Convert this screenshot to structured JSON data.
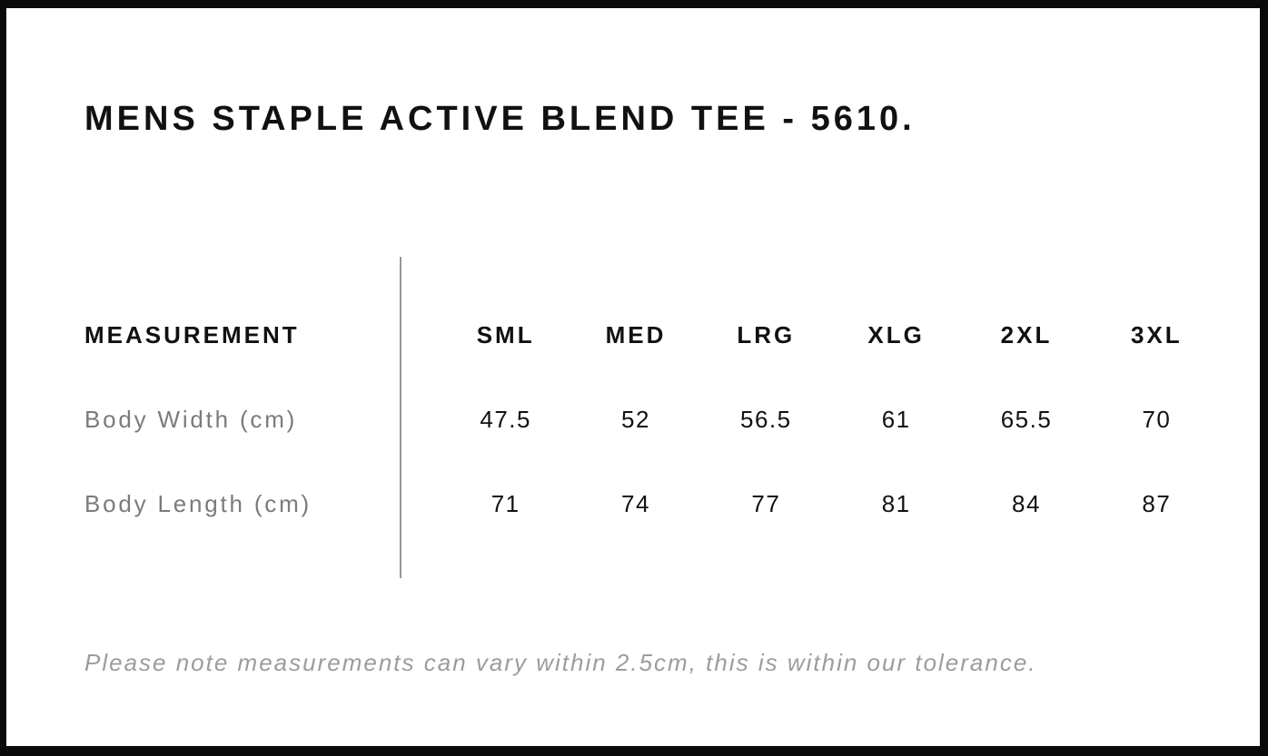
{
  "page": {
    "title": "MENS STAPLE ACTIVE BLEND TEE - 5610.",
    "note": "Please note measurements can vary within 2.5cm, this is within our tolerance."
  },
  "size_chart": {
    "measurement_label": "MEASUREMENT",
    "sizes": [
      "SML",
      "MED",
      "LRG",
      "XLG",
      "2XL",
      "3XL"
    ],
    "rows": [
      {
        "label": "Body Width (cm)",
        "values": [
          "47.5",
          "52",
          "56.5",
          "61",
          "65.5",
          "70"
        ]
      },
      {
        "label": "Body Length (cm)",
        "values": [
          "71",
          "74",
          "77",
          "81",
          "84",
          "87"
        ]
      }
    ]
  },
  "chart_data": {
    "type": "table",
    "title": "MENS STAPLE ACTIVE BLEND TEE - 5610.",
    "columns": [
      "MEASUREMENT",
      "SML",
      "MED",
      "LRG",
      "XLG",
      "2XL",
      "3XL"
    ],
    "rows": [
      [
        "Body Width (cm)",
        47.5,
        52,
        56.5,
        61,
        65.5,
        70
      ],
      [
        "Body Length (cm)",
        71,
        74,
        77,
        81,
        84,
        87
      ]
    ],
    "footnote": "Please note measurements can vary within 2.5cm, this is within our tolerance.",
    "layout_hints": {
      "label_column_divider": true,
      "grid": "off",
      "header_style": "bold-uppercase",
      "label_color": "#7b7b7b",
      "value_color": "#111111"
    }
  },
  "colors": {
    "frame": "#0a0a0a",
    "text": "#111111",
    "label_gray": "#7b7b7b",
    "note_gray": "#9c9c9c",
    "divider_gray": "#969696",
    "background": "#ffffff"
  }
}
